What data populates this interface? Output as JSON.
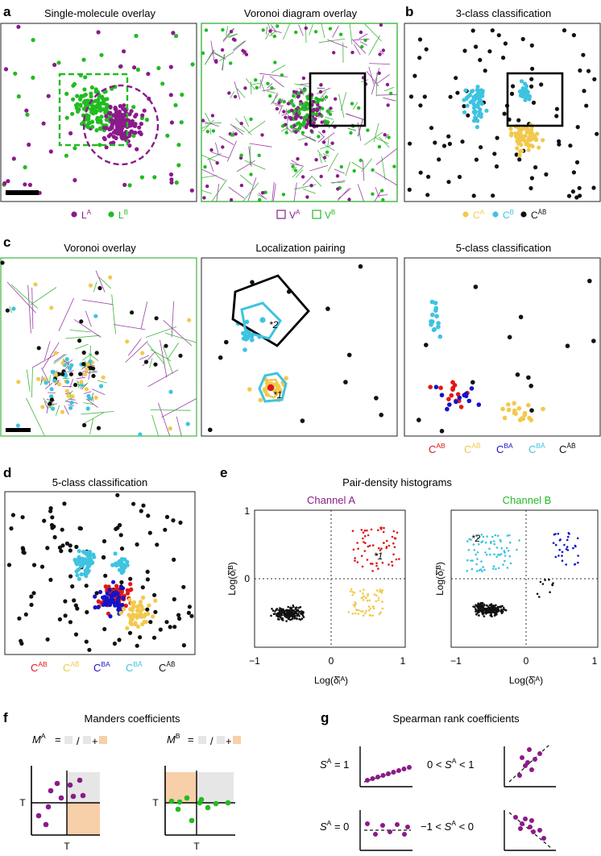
{
  "colors": {
    "purple": "#8b1a8b",
    "green": "#22bb22",
    "yellow": "#f2c94c",
    "cyan": "#3ec3e0",
    "black": "#111111",
    "red": "#e01818",
    "blue": "#1414c8",
    "voronoi_purple": "#9a3fa6",
    "voronoi_green": "#3fb53f",
    "manders_gray": "#e6e6e6",
    "manders_orange": "#f7cfa8"
  },
  "panel_a": {
    "label": "a",
    "title_left": "Single-molecule overlay",
    "title_right": "Voronoi diagram overlay",
    "legend_left": {
      "l1": "L",
      "l1_sup": "A",
      "l2": "L",
      "l2_sup": "B"
    },
    "legend_right": {
      "v1": "V",
      "v1_sup": "A",
      "v2": "V",
      "v2_sup": "B"
    }
  },
  "panel_b": {
    "label": "b",
    "title": "3-class classification",
    "legend": {
      "c1": "C",
      "c1_sup": "A",
      "c2": "C",
      "c2_sup": "B",
      "c3": "C",
      "c3_sup": "ĀB̄"
    }
  },
  "panel_c": {
    "label": "c",
    "title_left": "Voronoi overlay",
    "title_mid": "Localization pairing",
    "title_right": "5-class classification",
    "mark1": "*1",
    "mark2": "*2",
    "legend": [
      {
        "base": "C",
        "sup": "AB"
      },
      {
        "base": "C",
        "sup": "AB̄"
      },
      {
        "base": "C",
        "sup": "BA"
      },
      {
        "base": "C",
        "sup": "BĀ"
      },
      {
        "base": "C",
        "sup": "ĀB̄"
      }
    ]
  },
  "panel_d": {
    "label": "d",
    "title": "5-class classification",
    "legend": [
      {
        "base": "C",
        "sup": "AB"
      },
      {
        "base": "C",
        "sup": "AB̄"
      },
      {
        "base": "C",
        "sup": "BA"
      },
      {
        "base": "C",
        "sup": "BĀ"
      },
      {
        "base": "C",
        "sup": "ĀB̄"
      }
    ]
  },
  "panel_e": {
    "label": "e",
    "title": "Pair-density histograms",
    "channel_a": "Channel A",
    "channel_b": "Channel B",
    "ticks_x": [
      "−1",
      "0",
      "1"
    ],
    "ticks_y": [
      "1",
      "0"
    ],
    "xlabel_a": "Log(δ̂ᵢᴬ)",
    "ylabel_a": "Log(δ̂ᵢᴮ)",
    "xlabel_b": "Log(δ̂ⱼᴬ)",
    "ylabel_b": "Log(δ̂ⱼᴮ)",
    "mark1": "*1",
    "mark2": "*2"
  },
  "panel_f": {
    "label": "f",
    "title": "Manders coefficients",
    "formula_a": {
      "m": "M",
      "sup": "A",
      "eq": "=",
      "slash": "/",
      "plus": "+"
    },
    "formula_b": {
      "m": "M",
      "sup": "B",
      "eq": "=",
      "slash": "/",
      "plus": "+"
    },
    "axis_t": "T"
  },
  "panel_g": {
    "label": "g",
    "title": "Spearman  rank coefficients",
    "eq1": {
      "s": "S",
      "sup": "A",
      "rest": " = 1"
    },
    "eq2": {
      "pre": "0 < ",
      "s": "S",
      "sup": "A",
      "rest": " < 1"
    },
    "eq3": {
      "s": "S",
      "sup": "A",
      "rest": " = 0"
    },
    "eq4": {
      "pre": "−1 < ",
      "s": "S",
      "sup": "A",
      "rest": " < 0"
    }
  }
}
